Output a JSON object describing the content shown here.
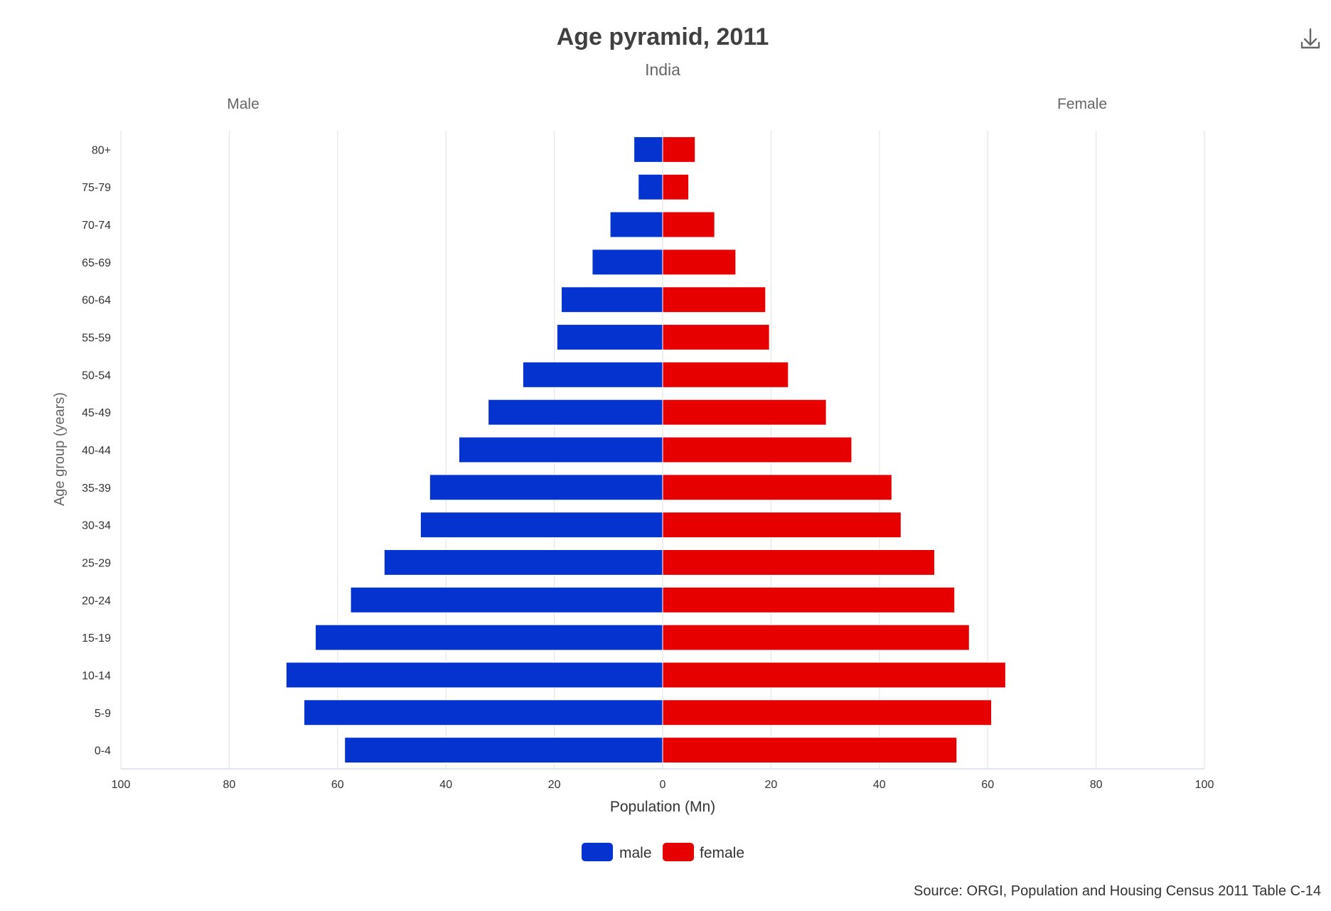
{
  "chart_data": {
    "type": "bar",
    "orientation": "horizontal",
    "layout": "population-pyramid",
    "title": "Age pyramid, 2011",
    "subtitle": "India",
    "left_label": "Male",
    "right_label": "Female",
    "xlabel": "Population (Mn)",
    "ylabel": "Age group (years)",
    "xlim": [
      -100,
      100
    ],
    "xticks": [
      -100,
      -80,
      -60,
      -40,
      -20,
      0,
      20,
      40,
      60,
      80,
      100
    ],
    "xtick_labels": [
      "100",
      "80",
      "60",
      "40",
      "20",
      "0",
      "20",
      "40",
      "60",
      "80",
      "100"
    ],
    "grid": "vertical",
    "legend_position": "bottom-center",
    "categories": [
      "80+",
      "75-79",
      "70-74",
      "65-69",
      "60-64",
      "55-59",
      "50-54",
      "45-49",
      "40-44",
      "35-39",
      "30-34",
      "25-29",
      "20-24",
      "15-19",
      "10-14",
      "5-9",
      "0-4"
    ],
    "series": [
      {
        "name": "male",
        "color": "#0433d0",
        "values": [
          5.3,
          4.5,
          9.7,
          13.0,
          18.7,
          19.5,
          25.8,
          32.2,
          37.6,
          43.0,
          44.7,
          51.4,
          57.6,
          64.1,
          69.5,
          66.2,
          58.7
        ]
      },
      {
        "name": "female",
        "color": "#e60000",
        "values": [
          6.0,
          4.8,
          9.6,
          13.5,
          19.0,
          19.7,
          23.2,
          30.2,
          34.9,
          42.3,
          44.0,
          50.2,
          53.9,
          56.6,
          63.3,
          60.7,
          54.3
        ]
      }
    ],
    "source": "Source: ORGI, Population and Housing Census 2011 Table C-14"
  },
  "toolbar": {
    "download_icon": "download-icon"
  }
}
